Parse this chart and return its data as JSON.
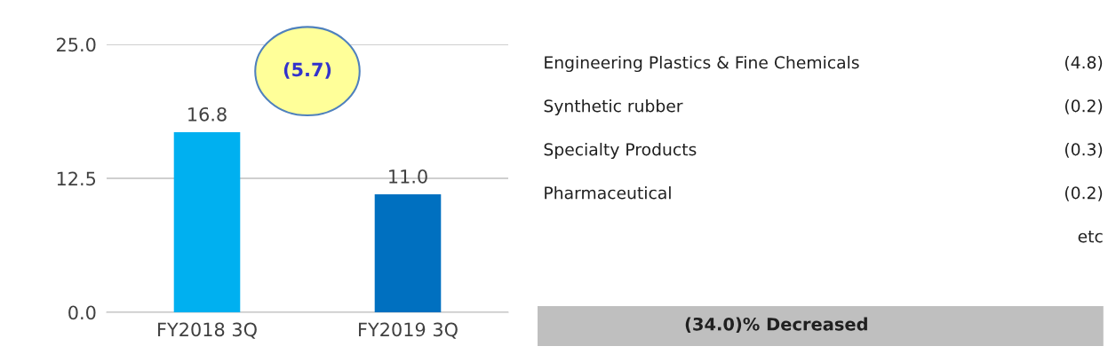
{
  "chart_data": [
    {
      "type": "bar",
      "categories": [
        "FY2018 3Q",
        "FY2019 3Q"
      ],
      "values": [
        16.8,
        11.0
      ],
      "colors": [
        "#00b0f0",
        "#0070c0"
      ],
      "value_labels": [
        "16.8",
        "11.0"
      ],
      "ylim": [
        0,
        25
      ],
      "yticks": [
        {
          "value": 0,
          "label": "0.0"
        },
        {
          "value": 12.5,
          "label": "12.5"
        },
        {
          "value": 25,
          "label": "25.0"
        }
      ],
      "grid": "y",
      "annotations": [
        "(5.7)"
      ]
    },
    {
      "type": "other",
      "annotations": [
        "Engineering Plastics & Fine Chemicals",
        "(4.8)",
        "Synthetic rubber",
        "(0.2)",
        "Specialty Products",
        "(0.3)",
        "Pharmaceutical",
        "(0.2)",
        "etc",
        "(34.0)% Decreased"
      ]
    }
  ]
}
